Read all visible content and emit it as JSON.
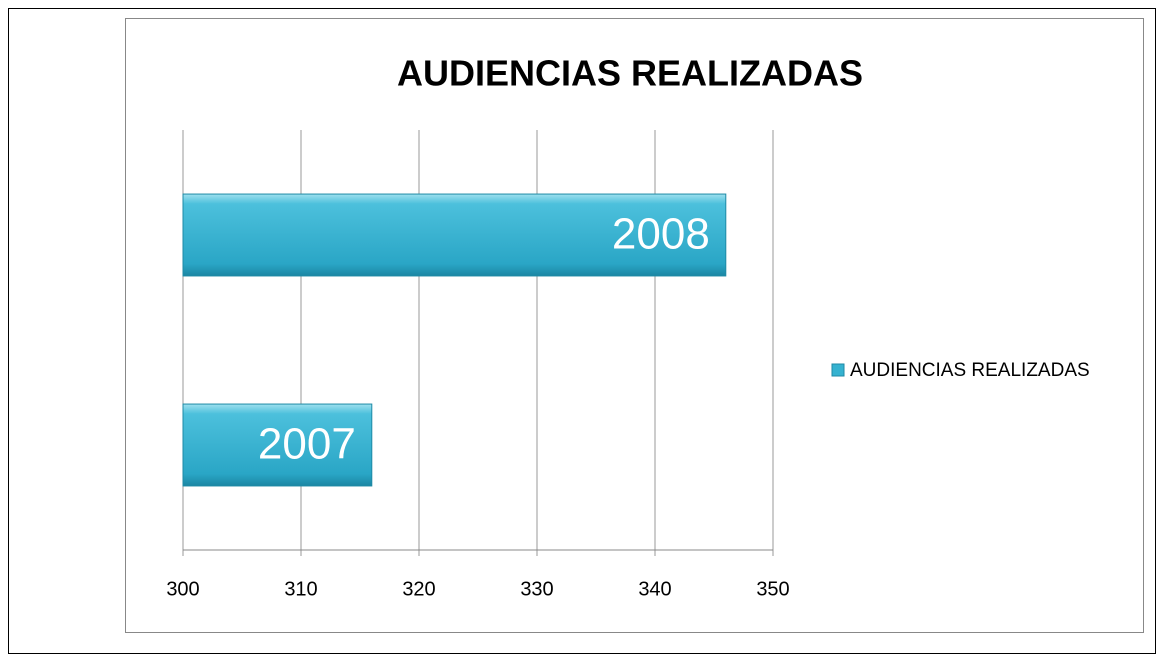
{
  "chart_data": {
    "type": "hbar",
    "title": "AUDIENCIAS REALIZADAS",
    "categories": [
      "2007",
      "2008"
    ],
    "series": [
      {
        "name": "AUDIENCIAS REALIZADAS",
        "color": "#35b2d0",
        "values": [
          316,
          346
        ]
      }
    ],
    "xlim": [
      300,
      350
    ],
    "xticks": [
      300,
      310,
      320,
      330,
      340,
      350
    ],
    "grid": true,
    "legend": "right"
  }
}
